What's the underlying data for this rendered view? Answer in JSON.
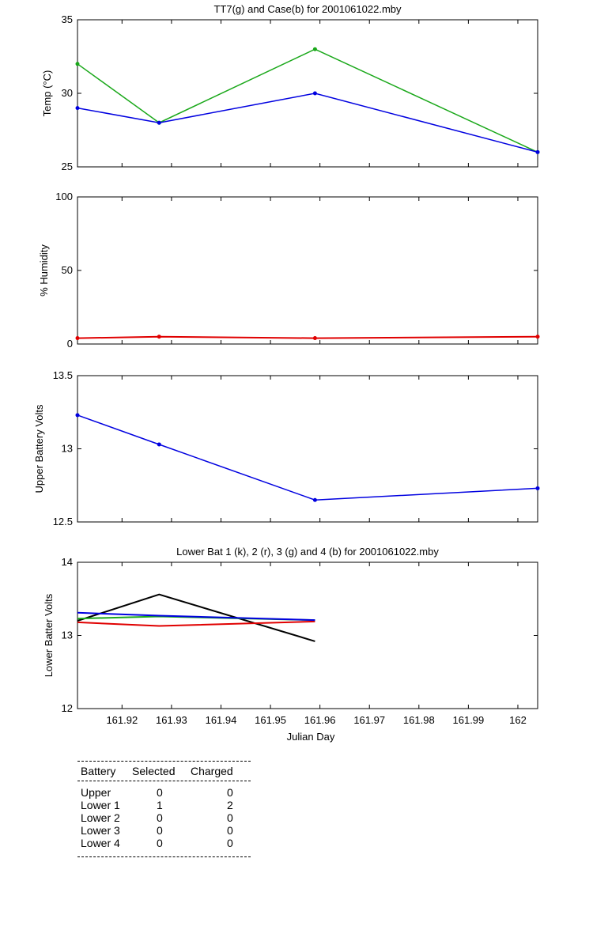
{
  "colors": {
    "green": "#1aa81a",
    "blue": "#0000e0",
    "red": "#e00000",
    "black": "#000000"
  },
  "chart_data": [
    {
      "type": "line",
      "title": "TT7(g) and Case(b) for 2001061022.mby",
      "ylabel": "Temp  (°C)",
      "xlabel": "",
      "xlim": [
        161.911,
        162.004
      ],
      "ylim": [
        25,
        35
      ],
      "yticks": [
        25,
        30,
        35
      ],
      "series": [
        {
          "color_key": "green",
          "x": [
            161.911,
            161.9275,
            161.959,
            162.004
          ],
          "y": [
            32,
            28,
            33,
            26
          ]
        },
        {
          "color_key": "blue",
          "x": [
            161.911,
            161.9275,
            161.959,
            162.004
          ],
          "y": [
            29,
            28,
            30,
            26
          ]
        }
      ]
    },
    {
      "type": "line",
      "title": "",
      "ylabel": "% Humidity",
      "xlabel": "",
      "xlim": [
        161.911,
        162.004
      ],
      "ylim": [
        0,
        100
      ],
      "yticks": [
        0,
        50,
        100
      ],
      "series": [
        {
          "color_key": "red",
          "x": [
            161.911,
            161.9275,
            161.959,
            162.004
          ],
          "y": [
            4,
            5,
            4,
            5
          ]
        }
      ]
    },
    {
      "type": "line",
      "title": "",
      "ylabel": "Upper Battery Volts",
      "xlabel": "",
      "xlim": [
        161.911,
        162.004
      ],
      "ylim": [
        12.5,
        13.5
      ],
      "yticks": [
        12.5,
        13,
        13.5
      ],
      "series": [
        {
          "color_key": "blue",
          "x": [
            161.911,
            161.9275,
            161.959,
            162.004
          ],
          "y": [
            13.23,
            13.03,
            12.65,
            12.73
          ]
        }
      ]
    },
    {
      "type": "line",
      "title": "Lower Bat 1 (k), 2 (r), 3 (g) and 4 (b) for 2001061022.mby",
      "ylabel": "Lower Batter Volts",
      "xlabel": "Julian Day",
      "xlim": [
        161.911,
        162.004
      ],
      "ylim": [
        12,
        14
      ],
      "yticks": [
        12,
        13,
        14
      ],
      "xticks": [
        161.92,
        161.93,
        161.94,
        161.95,
        161.96,
        161.97,
        161.98,
        161.99,
        162
      ],
      "series": [
        {
          "color_key": "black",
          "x": [
            161.911,
            161.9275,
            161.959
          ],
          "y": [
            13.2,
            13.56,
            12.92
          ]
        },
        {
          "color_key": "red",
          "x": [
            161.911,
            161.9275,
            161.959
          ],
          "y": [
            13.18,
            13.13,
            13.19
          ]
        },
        {
          "color_key": "green",
          "x": [
            161.911,
            161.9275,
            161.959
          ],
          "y": [
            13.23,
            13.26,
            13.21
          ]
        },
        {
          "color_key": "blue",
          "x": [
            161.911,
            161.9275,
            161.959
          ],
          "y": [
            13.31,
            13.27,
            13.21
          ]
        }
      ]
    }
  ],
  "battery_table": {
    "headers": [
      "Battery",
      "Selected",
      "Charged"
    ],
    "rows": [
      {
        "battery": "Upper",
        "selected": "0",
        "charged": "0"
      },
      {
        "battery": "Lower 1",
        "selected": "1",
        "charged": "2"
      },
      {
        "battery": "Lower 2",
        "selected": "0",
        "charged": "0"
      },
      {
        "battery": "Lower 3",
        "selected": "0",
        "charged": "0"
      },
      {
        "battery": "Lower 4",
        "selected": "0",
        "charged": "0"
      }
    ]
  }
}
